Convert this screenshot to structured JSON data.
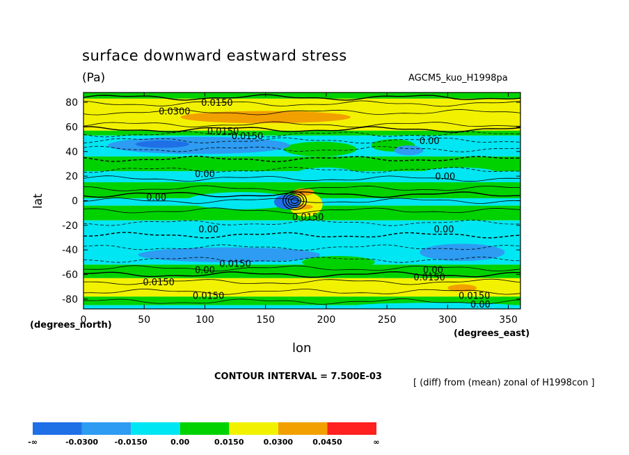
{
  "chart_data": {
    "type": "heatmap",
    "title": "surface downward eastward stress",
    "units": "(Pa)",
    "model_label": "AGCM5_kuo_H1998pa",
    "xlabel": "lon",
    "ylabel": "lat",
    "x_unit_label": "(degrees_east)",
    "y_unit_label": "(degrees_north)",
    "xlim": [
      0,
      360
    ],
    "ylim": [
      -88,
      88
    ],
    "x_ticks": [
      "0",
      "50",
      "100",
      "150",
      "200",
      "250",
      "300",
      "350"
    ],
    "y_ticks": [
      "80",
      "60",
      "40",
      "20",
      "0",
      "-20",
      "-40",
      "-60",
      "-80"
    ],
    "contour_interval_text": "CONTOUR INTERVAL = 7.500E-03",
    "diff_note": "[ (diff) from (mean) zonal of H1998con ]",
    "colorbar": {
      "colors": [
        "#1f6fe6",
        "#2d9cf2",
        "#00e6f2",
        "#00d200",
        "#f2f200",
        "#f2a000",
        "#ff2020"
      ],
      "labels": [
        "-∞",
        "-0.0300",
        "-0.0150",
        "0.00",
        "0.0150",
        "0.0300",
        "0.0450",
        "∞"
      ]
    },
    "contour_labels": [
      {
        "text": "0.0150",
        "lon": 110,
        "lat": 80
      },
      {
        "text": "0.0300",
        "lon": 75,
        "lat": 73
      },
      {
        "text": "0.0150",
        "lon": 115,
        "lat": 57
      },
      {
        "text": "0.0150",
        "lon": 135,
        "lat": 53
      },
      {
        "text": "0.00",
        "lon": 285,
        "lat": 49
      },
      {
        "text": "0.00",
        "lon": 100,
        "lat": 22
      },
      {
        "text": "0.00",
        "lon": 298,
        "lat": 20
      },
      {
        "text": "0.00",
        "lon": 60,
        "lat": 3
      },
      {
        "text": "0.0150",
        "lon": 185,
        "lat": -13
      },
      {
        "text": "0.00",
        "lon": 103,
        "lat": -23
      },
      {
        "text": "0.00",
        "lon": 297,
        "lat": -23
      },
      {
        "text": "0.0150",
        "lon": 125,
        "lat": -51
      },
      {
        "text": "0.00",
        "lon": 100,
        "lat": -56
      },
      {
        "text": "0.00",
        "lon": 288,
        "lat": -56
      },
      {
        "text": "0.0150",
        "lon": 285,
        "lat": -62
      },
      {
        "text": "0.0150",
        "lon": 62,
        "lat": -66
      },
      {
        "text": "0.0150",
        "lon": 103,
        "lat": -77
      },
      {
        "text": "0.0150",
        "lon": 322,
        "lat": -77
      },
      {
        "text": "0.00",
        "lon": 327,
        "lat": -84
      }
    ]
  }
}
